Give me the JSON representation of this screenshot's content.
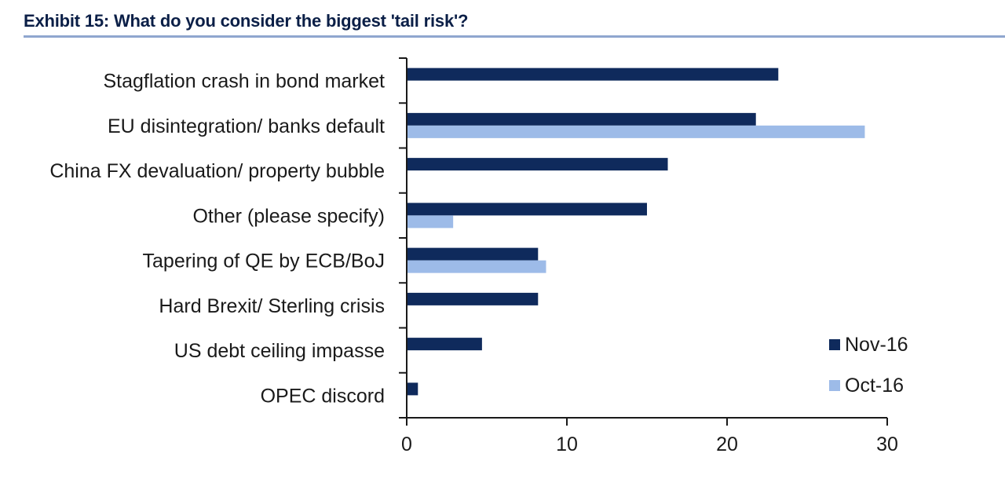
{
  "title": "Exhibit 15: What do you consider the biggest 'tail risk'?",
  "chart_data": {
    "type": "bar",
    "orientation": "horizontal",
    "categories": [
      "Stagflation crash in bond market",
      "EU disintegration/ banks default",
      "China FX devaluation/ property bubble",
      "Other (please specify)",
      "Tapering of QE by ECB/BoJ",
      "Hard Brexit/ Sterling crisis",
      "US debt ceiling impasse",
      "OPEC discord"
    ],
    "series": [
      {
        "name": "Nov-16",
        "color": "#0f2a5c",
        "values": [
          23.2,
          21.8,
          16.3,
          15.0,
          8.2,
          8.2,
          4.7,
          0.7
        ]
      },
      {
        "name": "Oct-16",
        "color": "#9dbbe8",
        "values": [
          null,
          28.6,
          null,
          2.9,
          8.7,
          null,
          null,
          null
        ]
      }
    ],
    "xlim": [
      0,
      30
    ],
    "xticks": [
      "0",
      "10",
      "20",
      "30"
    ],
    "legend": "bottom-right",
    "grid": false
  }
}
